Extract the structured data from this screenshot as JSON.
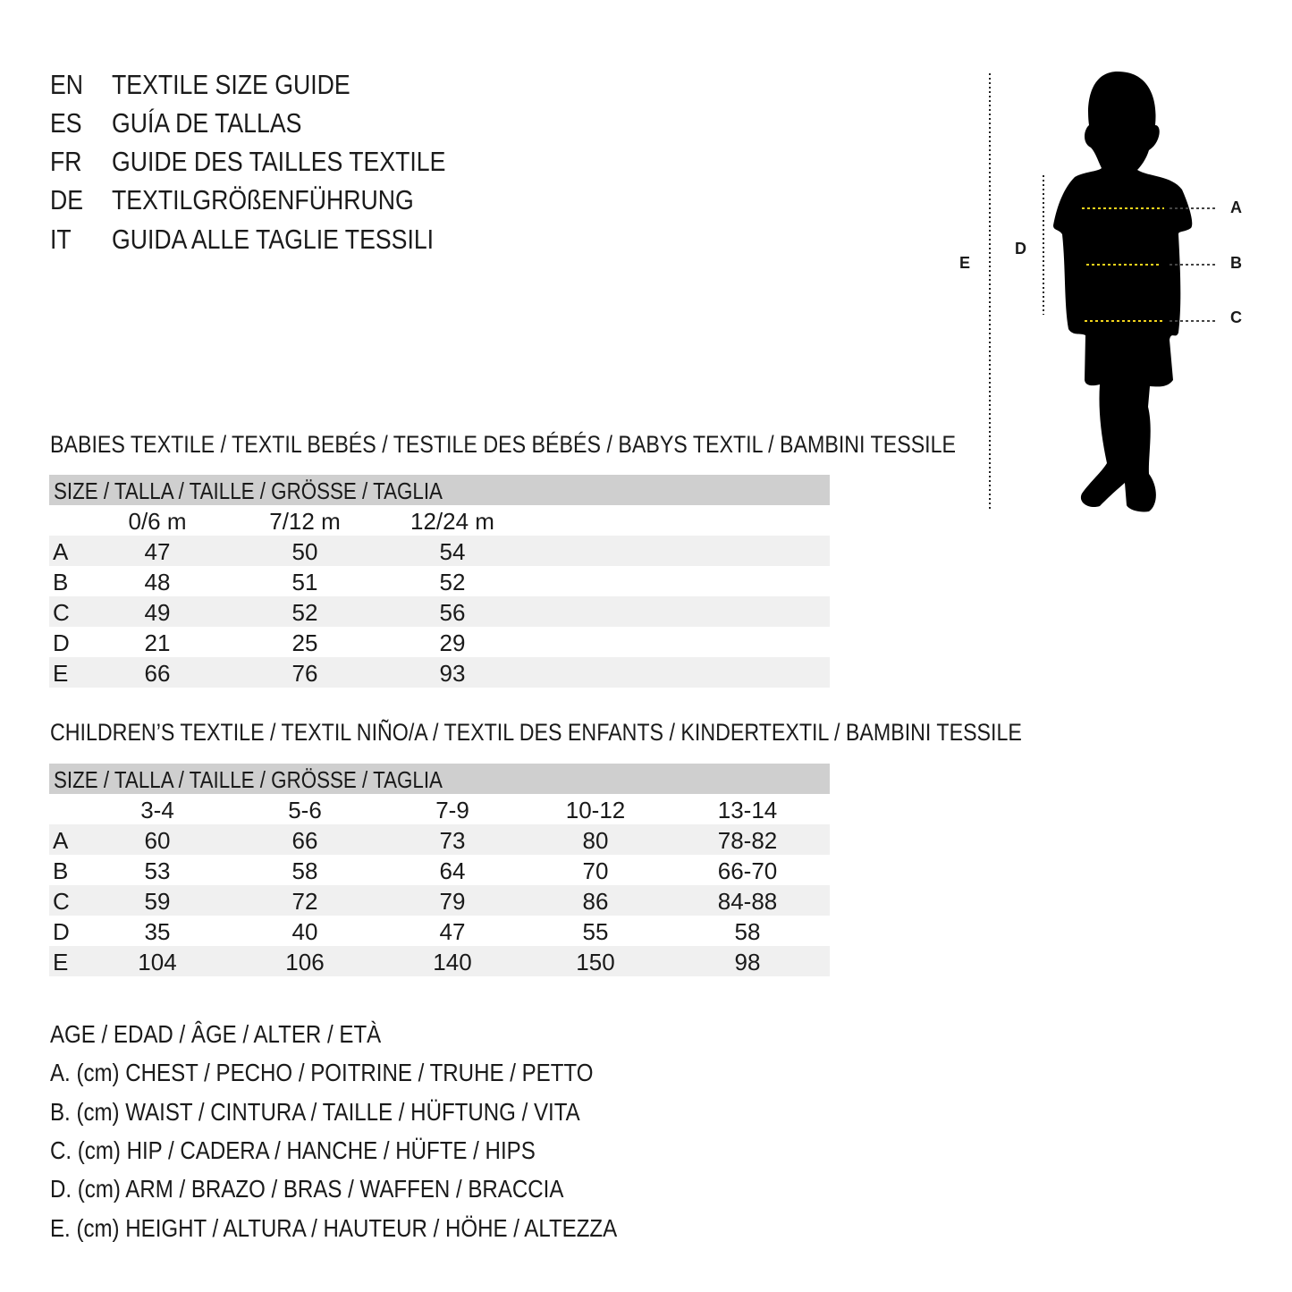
{
  "titles": [
    {
      "lang": "EN",
      "text": "TEXTILE SIZE GUIDE"
    },
    {
      "lang": "ES",
      "text": "GUÍA DE TALLAS"
    },
    {
      "lang": "FR",
      "text": "GUIDE DES TAILLES TEXTILE"
    },
    {
      "lang": "DE",
      "text": "TEXTILGRÖßENFÜHRUNG"
    },
    {
      "lang": "IT",
      "text": "GUIDA ALLE TAGLIE TESSILI"
    }
  ],
  "figure": {
    "labels": {
      "a": "A",
      "b": "B",
      "c": "C",
      "d": "D",
      "e": "E"
    },
    "accent_color": "#f2d31b"
  },
  "babies": {
    "title": "BABIES TEXTILE / TEXTIL BEBÉS / TESTILE DES BÉBÉS / BABYS TEXTIL / BAMBINI TESSILE",
    "header": "SIZE / TALLA / TAILLE / GRÖSSE / TAGLIA",
    "columns": [
      "0/6 m",
      "7/12 m",
      "12/24 m"
    ],
    "rows": [
      {
        "label": "A",
        "values": [
          "47",
          "50",
          "54"
        ]
      },
      {
        "label": "B",
        "values": [
          "48",
          "51",
          "52"
        ]
      },
      {
        "label": "C",
        "values": [
          "49",
          "52",
          "56"
        ]
      },
      {
        "label": "D",
        "values": [
          "21",
          "25",
          "29"
        ]
      },
      {
        "label": "E",
        "values": [
          "66",
          "76",
          "93"
        ]
      }
    ]
  },
  "children": {
    "title": "CHILDREN’S TEXTILE / TEXTIL NIÑO/A / TEXTIL DES ENFANTS / KINDERTEXTIL / BAMBINI TESSILE",
    "header": "SIZE / TALLA / TAILLE / GRÖSSE / TAGLIA",
    "columns": [
      "3-4",
      "5-6",
      "7-9",
      "10-12",
      "13-14"
    ],
    "rows": [
      {
        "label": "A",
        "values": [
          "60",
          "66",
          "73",
          "80",
          "78-82"
        ]
      },
      {
        "label": "B",
        "values": [
          "53",
          "58",
          "64",
          "70",
          "66-70"
        ]
      },
      {
        "label": "C",
        "values": [
          "59",
          "72",
          "79",
          "86",
          "84-88"
        ]
      },
      {
        "label": "D",
        "values": [
          "35",
          "40",
          "47",
          "55",
          "58"
        ]
      },
      {
        "label": "E",
        "values": [
          "104",
          "106",
          "140",
          "150",
          "98"
        ]
      }
    ]
  },
  "legend": [
    "AGE / EDAD / ÂGE / ALTER / ETÀ",
    "A. (cm) CHEST / PECHO / POITRINE / TRUHE / PETTO",
    "B. (cm) WAIST / CINTURA / TAILLE / HÜFTUNG / VITA",
    "C. (cm) HIP / CADERA / HANCHE / HÜFTE / HIPS",
    "D. (cm) ARM / BRAZO / BRAS / WAFFEN / BRACCIA",
    "E. (cm) HEIGHT / ALTURA / HAUTEUR / HÖHE / ALTEZZA"
  ]
}
